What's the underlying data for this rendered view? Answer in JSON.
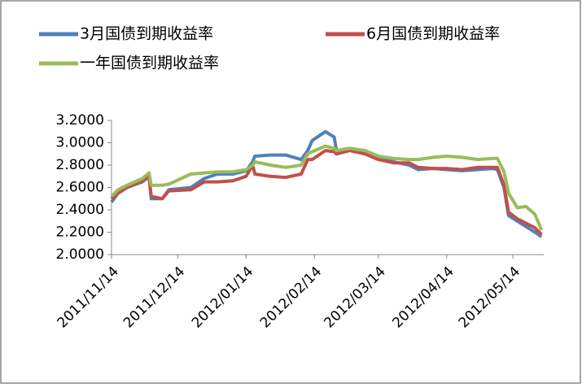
{
  "chart_data": {
    "type": "line",
    "x": [
      "2011/11/14",
      "2011/11/17",
      "2011/11/21",
      "2011/11/28",
      "2011/12/01",
      "2011/12/02",
      "2011/12/07",
      "2011/12/10",
      "2011/12/20",
      "2011/12/26",
      "2012/01/01",
      "2012/01/08",
      "2012/01/14",
      "2012/01/17",
      "2012/01/18",
      "2012/01/25",
      "2012/02/01",
      "2012/02/08",
      "2012/02/11",
      "2012/02/13",
      "2012/02/19",
      "2012/02/23",
      "2012/02/24",
      "2012/03/01",
      "2012/03/08",
      "2012/03/14",
      "2012/03/21",
      "2012/03/28",
      "2012/04/01",
      "2012/04/08",
      "2012/04/14",
      "2012/04/21",
      "2012/04/28",
      "2012/05/05",
      "2012/05/07",
      "2012/05/10",
      "2012/05/12",
      "2012/05/16",
      "2012/05/20",
      "2012/05/24",
      "2012/05/27"
    ],
    "series": [
      {
        "name": "3月国债到期收益率",
        "color": "#4f81bd",
        "values": [
          2.47,
          2.55,
          2.6,
          2.65,
          2.7,
          2.5,
          2.5,
          2.58,
          2.6,
          2.68,
          2.72,
          2.72,
          2.75,
          2.83,
          2.88,
          2.89,
          2.89,
          2.85,
          2.93,
          3.02,
          3.1,
          3.05,
          2.93,
          2.95,
          2.92,
          2.88,
          2.83,
          2.8,
          2.76,
          2.77,
          2.76,
          2.75,
          2.76,
          2.77,
          2.76,
          2.6,
          2.35,
          2.3,
          2.25,
          2.2,
          2.16
        ]
      },
      {
        "name": "6月国债到期收益率",
        "color": "#c0504d",
        "values": [
          2.5,
          2.55,
          2.6,
          2.66,
          2.7,
          2.52,
          2.5,
          2.57,
          2.58,
          2.65,
          2.65,
          2.66,
          2.7,
          2.8,
          2.72,
          2.7,
          2.69,
          2.72,
          2.85,
          2.85,
          2.93,
          2.92,
          2.9,
          2.93,
          2.9,
          2.85,
          2.82,
          2.82,
          2.78,
          2.77,
          2.77,
          2.76,
          2.78,
          2.78,
          2.78,
          2.62,
          2.38,
          2.32,
          2.28,
          2.24,
          2.18
        ]
      },
      {
        "name": "一年国债到期收益率",
        "color": "#9bbb59",
        "values": [
          2.52,
          2.58,
          2.62,
          2.68,
          2.73,
          2.62,
          2.62,
          2.63,
          2.72,
          2.73,
          2.74,
          2.74,
          2.76,
          2.8,
          2.83,
          2.8,
          2.78,
          2.8,
          2.9,
          2.92,
          2.97,
          2.95,
          2.93,
          2.95,
          2.93,
          2.88,
          2.86,
          2.85,
          2.85,
          2.87,
          2.88,
          2.87,
          2.85,
          2.86,
          2.86,
          2.74,
          2.55,
          2.42,
          2.43,
          2.36,
          2.22
        ]
      }
    ],
    "xlim": [
      "2011/11/14",
      "2012/05/28"
    ],
    "xticks": [
      "2011/11/14",
      "2011/12/14",
      "2012/01/14",
      "2012/02/14",
      "2012/03/14",
      "2012/04/14",
      "2012/05/14"
    ],
    "ylim": [
      2.0,
      3.2
    ],
    "yticks": [
      {
        "value": 2.0,
        "label": "2.0000"
      },
      {
        "value": 2.2,
        "label": "2.2000"
      },
      {
        "value": 2.4,
        "label": "2.4000"
      },
      {
        "value": 2.6,
        "label": "2.6000"
      },
      {
        "value": 2.8,
        "label": "2.8000"
      },
      {
        "value": 3.0,
        "label": "3.0000"
      },
      {
        "value": 3.2,
        "label": "3.2000"
      }
    ],
    "grid": false
  }
}
